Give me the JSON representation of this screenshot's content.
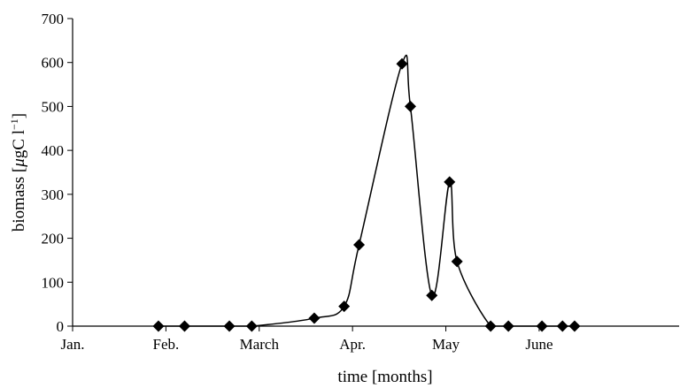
{
  "chart_data": {
    "type": "line",
    "xlabel": "time [months]",
    "ylabel": {
      "prefix": "biomass [",
      "mu": "μ",
      "unit": "gC l",
      "sup": "−1",
      "suffix": "]"
    },
    "ylim": [
      0,
      700
    ],
    "yticks": [
      0,
      100,
      200,
      300,
      400,
      500,
      600,
      700
    ],
    "ytick_labels": [
      "0",
      "100",
      "200",
      "300",
      "400",
      "500",
      "600",
      "700"
    ],
    "xlim": [
      0,
      6.5
    ],
    "xticks": [
      0,
      1,
      2,
      3,
      4,
      5
    ],
    "xtick_labels": [
      "Jan.",
      "Feb.",
      "March",
      "Apr.",
      "May",
      "June"
    ],
    "series": [
      {
        "marker": "diamond",
        "color": "#000000",
        "x": [
          0.92,
          1.2,
          1.68,
          1.92,
          2.59,
          2.91,
          3.07,
          3.53,
          3.62,
          3.85,
          4.04,
          4.12,
          4.48,
          4.67,
          5.03,
          5.25,
          5.38
        ],
        "y": [
          0,
          0,
          0,
          0,
          18,
          45,
          185,
          597,
          500,
          70,
          328,
          147,
          0,
          0,
          0,
          0,
          0
        ]
      }
    ]
  }
}
